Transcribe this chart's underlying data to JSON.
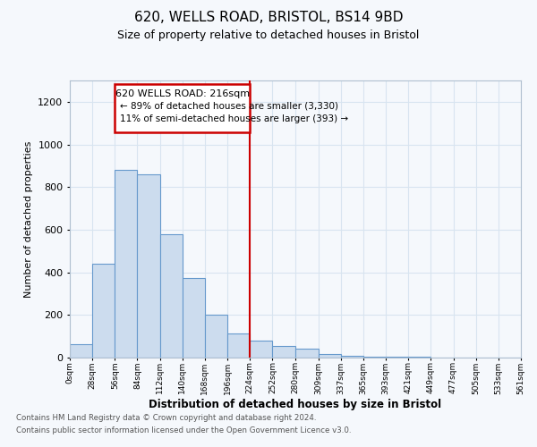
{
  "title1": "620, WELLS ROAD, BRISTOL, BS14 9BD",
  "title2": "Size of property relative to detached houses in Bristol",
  "xlabel": "Distribution of detached houses by size in Bristol",
  "ylabel": "Number of detached properties",
  "bin_edges": [
    0,
    28,
    56,
    84,
    112,
    140,
    168,
    196,
    224,
    252,
    280,
    309,
    337,
    365,
    393,
    421,
    449,
    477,
    505,
    533,
    561
  ],
  "bar_heights": [
    65,
    440,
    880,
    860,
    580,
    375,
    200,
    115,
    80,
    55,
    40,
    15,
    8,
    5,
    5,
    3,
    2,
    1,
    1,
    1
  ],
  "bar_color": "#ccdcee",
  "bar_edge_color": "#6699cc",
  "vline_x": 224,
  "vline_color": "#cc0000",
  "box_text_line1": "620 WELLS ROAD: 216sqm",
  "box_text_line2": "← 89% of detached houses are smaller (3,330)",
  "box_text_line3": "11% of semi-detached houses are larger (393) →",
  "box_color": "#cc0000",
  "box_fill": "white",
  "ylim": [
    0,
    1300
  ],
  "yticks": [
    0,
    200,
    400,
    600,
    800,
    1000,
    1200
  ],
  "bg_color": "#f5f8fc",
  "plot_bg_color": "#f5f8fc",
  "grid_color": "#d8e4f0",
  "footer1": "Contains HM Land Registry data © Crown copyright and database right 2024.",
  "footer2": "Contains public sector information licensed under the Open Government Licence v3.0."
}
